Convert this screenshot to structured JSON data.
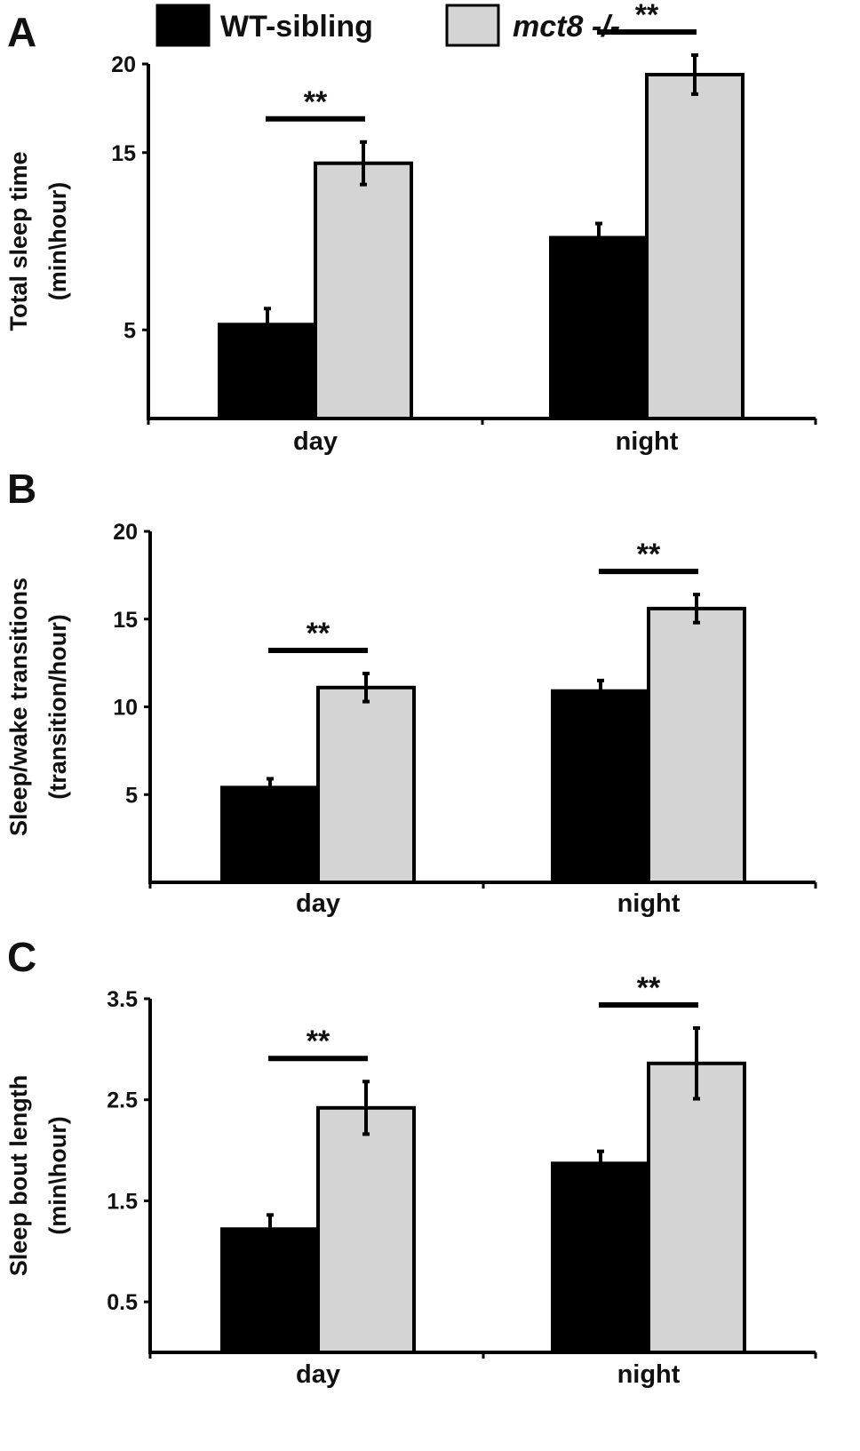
{
  "legend": [
    {
      "label": "WT-sibling",
      "color": "#000000",
      "italic": false
    },
    {
      "label": "mct8 -/-",
      "color": "#d4d4d4",
      "italic": true
    }
  ],
  "chart_data": [
    {
      "panel": "A",
      "type": "bar",
      "ylabel_line1": "Total sleep time",
      "ylabel_line2": "(min\\hour)",
      "categories": [
        "day",
        "night"
      ],
      "ylim": [
        0,
        20
      ],
      "yticks": [
        5,
        15,
        20
      ],
      "ytick_labels": [
        "5",
        "15",
        "20"
      ],
      "series": [
        {
          "name": "WT-sibling",
          "values": [
            5.3,
            10.2
          ],
          "errors": [
            0.9,
            0.8
          ]
        },
        {
          "name": "mct8 -/-",
          "values": [
            14.4,
            19.4
          ],
          "errors": [
            1.2,
            1.1
          ]
        }
      ],
      "significance": [
        "**",
        "**"
      ]
    },
    {
      "panel": "B",
      "type": "bar",
      "ylabel_line1": "Sleep/wake transitions",
      "ylabel_line2": "(transition/hour)",
      "categories": [
        "day",
        "night"
      ],
      "ylim": [
        0,
        20
      ],
      "yticks": [
        5,
        10,
        15,
        20
      ],
      "ytick_labels": [
        "5",
        "10",
        "15",
        "20"
      ],
      "series": [
        {
          "name": "WT-sibling",
          "values": [
            5.4,
            10.9
          ],
          "errors": [
            0.5,
            0.6
          ]
        },
        {
          "name": "mct8 -/-",
          "values": [
            11.1,
            15.6
          ],
          "errors": [
            0.8,
            0.8
          ]
        }
      ],
      "significance": [
        "**",
        "**"
      ]
    },
    {
      "panel": "C",
      "type": "bar",
      "ylabel_line1": "Sleep bout length",
      "ylabel_line2": "(min\\hour)",
      "categories": [
        "day",
        "night"
      ],
      "ylim": [
        0,
        3.5
      ],
      "yticks": [
        0.5,
        1.5,
        2.5,
        3.5
      ],
      "ytick_labels": [
        "0.5",
        "1.5",
        "2.5",
        "3.5"
      ],
      "series": [
        {
          "name": "WT-sibling",
          "values": [
            1.22,
            1.87
          ],
          "errors": [
            0.14,
            0.12
          ]
        },
        {
          "name": "mct8 -/-",
          "values": [
            2.42,
            2.86
          ],
          "errors": [
            0.26,
            0.35
          ]
        }
      ],
      "significance": [
        "**",
        "**"
      ]
    }
  ]
}
